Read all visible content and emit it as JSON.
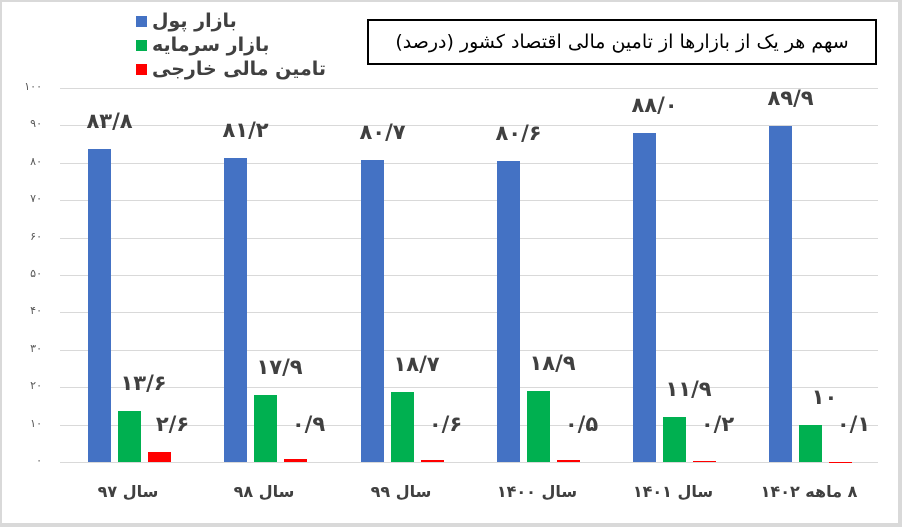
{
  "chart_data": {
    "type": "bar",
    "title": "سهم هر یک از بازارها از تامین مالی اقتصاد کشور (درصد)",
    "xlabel": "",
    "ylabel": "",
    "ylim": [
      0,
      100
    ],
    "yticks": [
      0,
      10,
      20,
      30,
      40,
      50,
      60,
      70,
      80,
      90,
      100
    ],
    "ytick_labels": [
      "۰",
      "۱۰",
      "۲۰",
      "۳۰",
      "۴۰",
      "۵۰",
      "۶۰",
      "۷۰",
      "۸۰",
      "۹۰",
      "۱۰۰"
    ],
    "grid": true,
    "legend_position": "top-left",
    "categories": [
      "سال ۹۷",
      "سال ۹۸",
      "سال ۹۹",
      "سال ۱۴۰۰",
      "سال ۱۴۰۱",
      "۸ ماهه ۱۴۰۲"
    ],
    "series": [
      {
        "name": "بازار پول",
        "color": "#4472c4",
        "values": [
          83.8,
          81.2,
          80.7,
          80.6,
          88.0,
          89.9
        ],
        "labels": [
          "۸۳/۸",
          "۸۱/۲",
          "۸۰/۷",
          "۸۰/۶",
          "۸۸/۰",
          "۸۹/۹"
        ]
      },
      {
        "name": "بازار سرمایه",
        "color": "#00b050",
        "values": [
          13.6,
          17.9,
          18.7,
          18.9,
          11.9,
          10
        ],
        "labels": [
          "۱۳/۶",
          "۱۷/۹",
          "۱۸/۷",
          "۱۸/۹",
          "۱۱/۹",
          "۱۰"
        ]
      },
      {
        "name": "تامین مالی خارجی",
        "color": "#ff0000",
        "values": [
          2.6,
          0.9,
          0.6,
          0.5,
          0.2,
          0.1
        ],
        "labels": [
          "۲/۶",
          "۰/۹",
          "۰/۶",
          "۰/۵",
          "۰/۲",
          "۰/۱"
        ]
      }
    ]
  }
}
